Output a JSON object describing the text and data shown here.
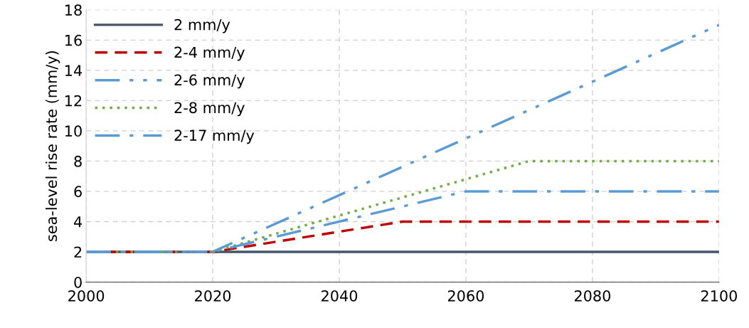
{
  "chart_data": {
    "type": "line",
    "ylabel": "sea-level rise rate (mm/y)",
    "xlim": [
      2000,
      2100
    ],
    "xticks": [
      2000,
      2020,
      2040,
      2060,
      2080,
      2100
    ],
    "ylim": [
      0,
      18
    ],
    "yticks": [
      0,
      2,
      4,
      6,
      8,
      10,
      12,
      14,
      16,
      18
    ],
    "grid": true,
    "legend": "top left",
    "marker": "none",
    "series": [
      {
        "name": "2 mm/y",
        "color": "#44546a",
        "line_style": "solid",
        "x": [
          2000,
          2100
        ],
        "values": [
          2,
          2
        ]
      },
      {
        "name": "2-4 mm/y",
        "color": "#c00000",
        "line_style": "dashed",
        "x": [
          2000,
          2020,
          2050,
          2100
        ],
        "values": [
          2,
          2,
          4,
          4
        ]
      },
      {
        "name": "2-6 mm/y",
        "color": "#5b9bd5",
        "line_style": "dashdotdot",
        "x": [
          2000,
          2020,
          2100
        ],
        "values": [
          2,
          2,
          17
        ]
      },
      {
        "name": "2-8 mm/y",
        "color": "#70ad47",
        "line_style": "dotted",
        "x": [
          2000,
          2020,
          2070,
          2100
        ],
        "values": [
          2,
          2,
          8,
          8
        ]
      },
      {
        "name": "2-17 mm/y",
        "color": "#5b9bd5",
        "line_style": "dashdot",
        "x": [
          2000,
          2020,
          2060,
          2100
        ],
        "values": [
          2,
          2,
          6,
          6
        ]
      }
    ]
  }
}
